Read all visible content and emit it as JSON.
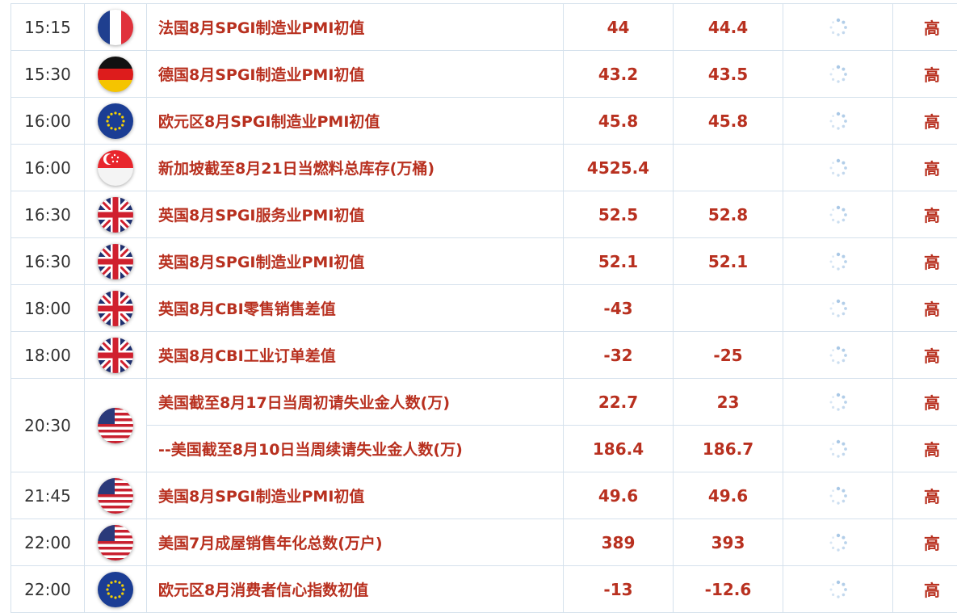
{
  "table": {
    "rows": [
      {
        "time": "15:15",
        "event": "法国8月SPGI制造业PMI初值",
        "previous": 44,
        "forecast": 44.4,
        "importance": "高"
      },
      {
        "time": "15:30",
        "event": "德国8月SPGI制造业PMI初值",
        "previous": 43.2,
        "forecast": 43.5,
        "importance": "高"
      },
      {
        "time": "16:00",
        "event": "欧元区8月SPGI制造业PMI初值",
        "previous": 45.8,
        "forecast": 45.8,
        "importance": "高"
      },
      {
        "time": "16:00",
        "event": "新加坡截至8月21日当燃料总库存(万桶)",
        "previous": 4525.4,
        "importance": "高"
      },
      {
        "time": "16:30",
        "event": "英国8月SPGI服务业PMI初值",
        "previous": 52.5,
        "forecast": 52.8,
        "importance": "高"
      },
      {
        "time": "16:30",
        "event": "英国8月SPGI制造业PMI初值",
        "previous": 52.1,
        "forecast": 52.1,
        "importance": "高"
      },
      {
        "time": "18:00",
        "event": "英国8月CBI零售销售差值",
        "previous": -43,
        "importance": "高"
      },
      {
        "time": "18:00",
        "event": "英国8月CBI工业订单差值",
        "previous": -32,
        "forecast": -25,
        "importance": "高"
      },
      {
        "time": "20:30",
        "event": "美国截至8月17日当周初请失业金人数(万)",
        "previous": 22.7,
        "forecast": 23,
        "importance": "高"
      },
      {
        "event": "--美国截至8月10日当周续请失业金人数(万)",
        "previous": 186.4,
        "forecast": 186.7,
        "importance": "高"
      },
      {
        "time": "21:45",
        "event": "美国8月SPGI制造业PMI初值",
        "previous": 49.6,
        "forecast": 49.6,
        "importance": "高"
      },
      {
        "time": "22:00",
        "event": "美国7月成屋销售年化总数(万户)",
        "previous": 389,
        "forecast": 393,
        "importance": "高"
      },
      {
        "time": "22:00",
        "event": "欧元区8月消费者信心指数初值",
        "previous": -13,
        "forecast": -12.6,
        "importance": "高"
      }
    ]
  }
}
